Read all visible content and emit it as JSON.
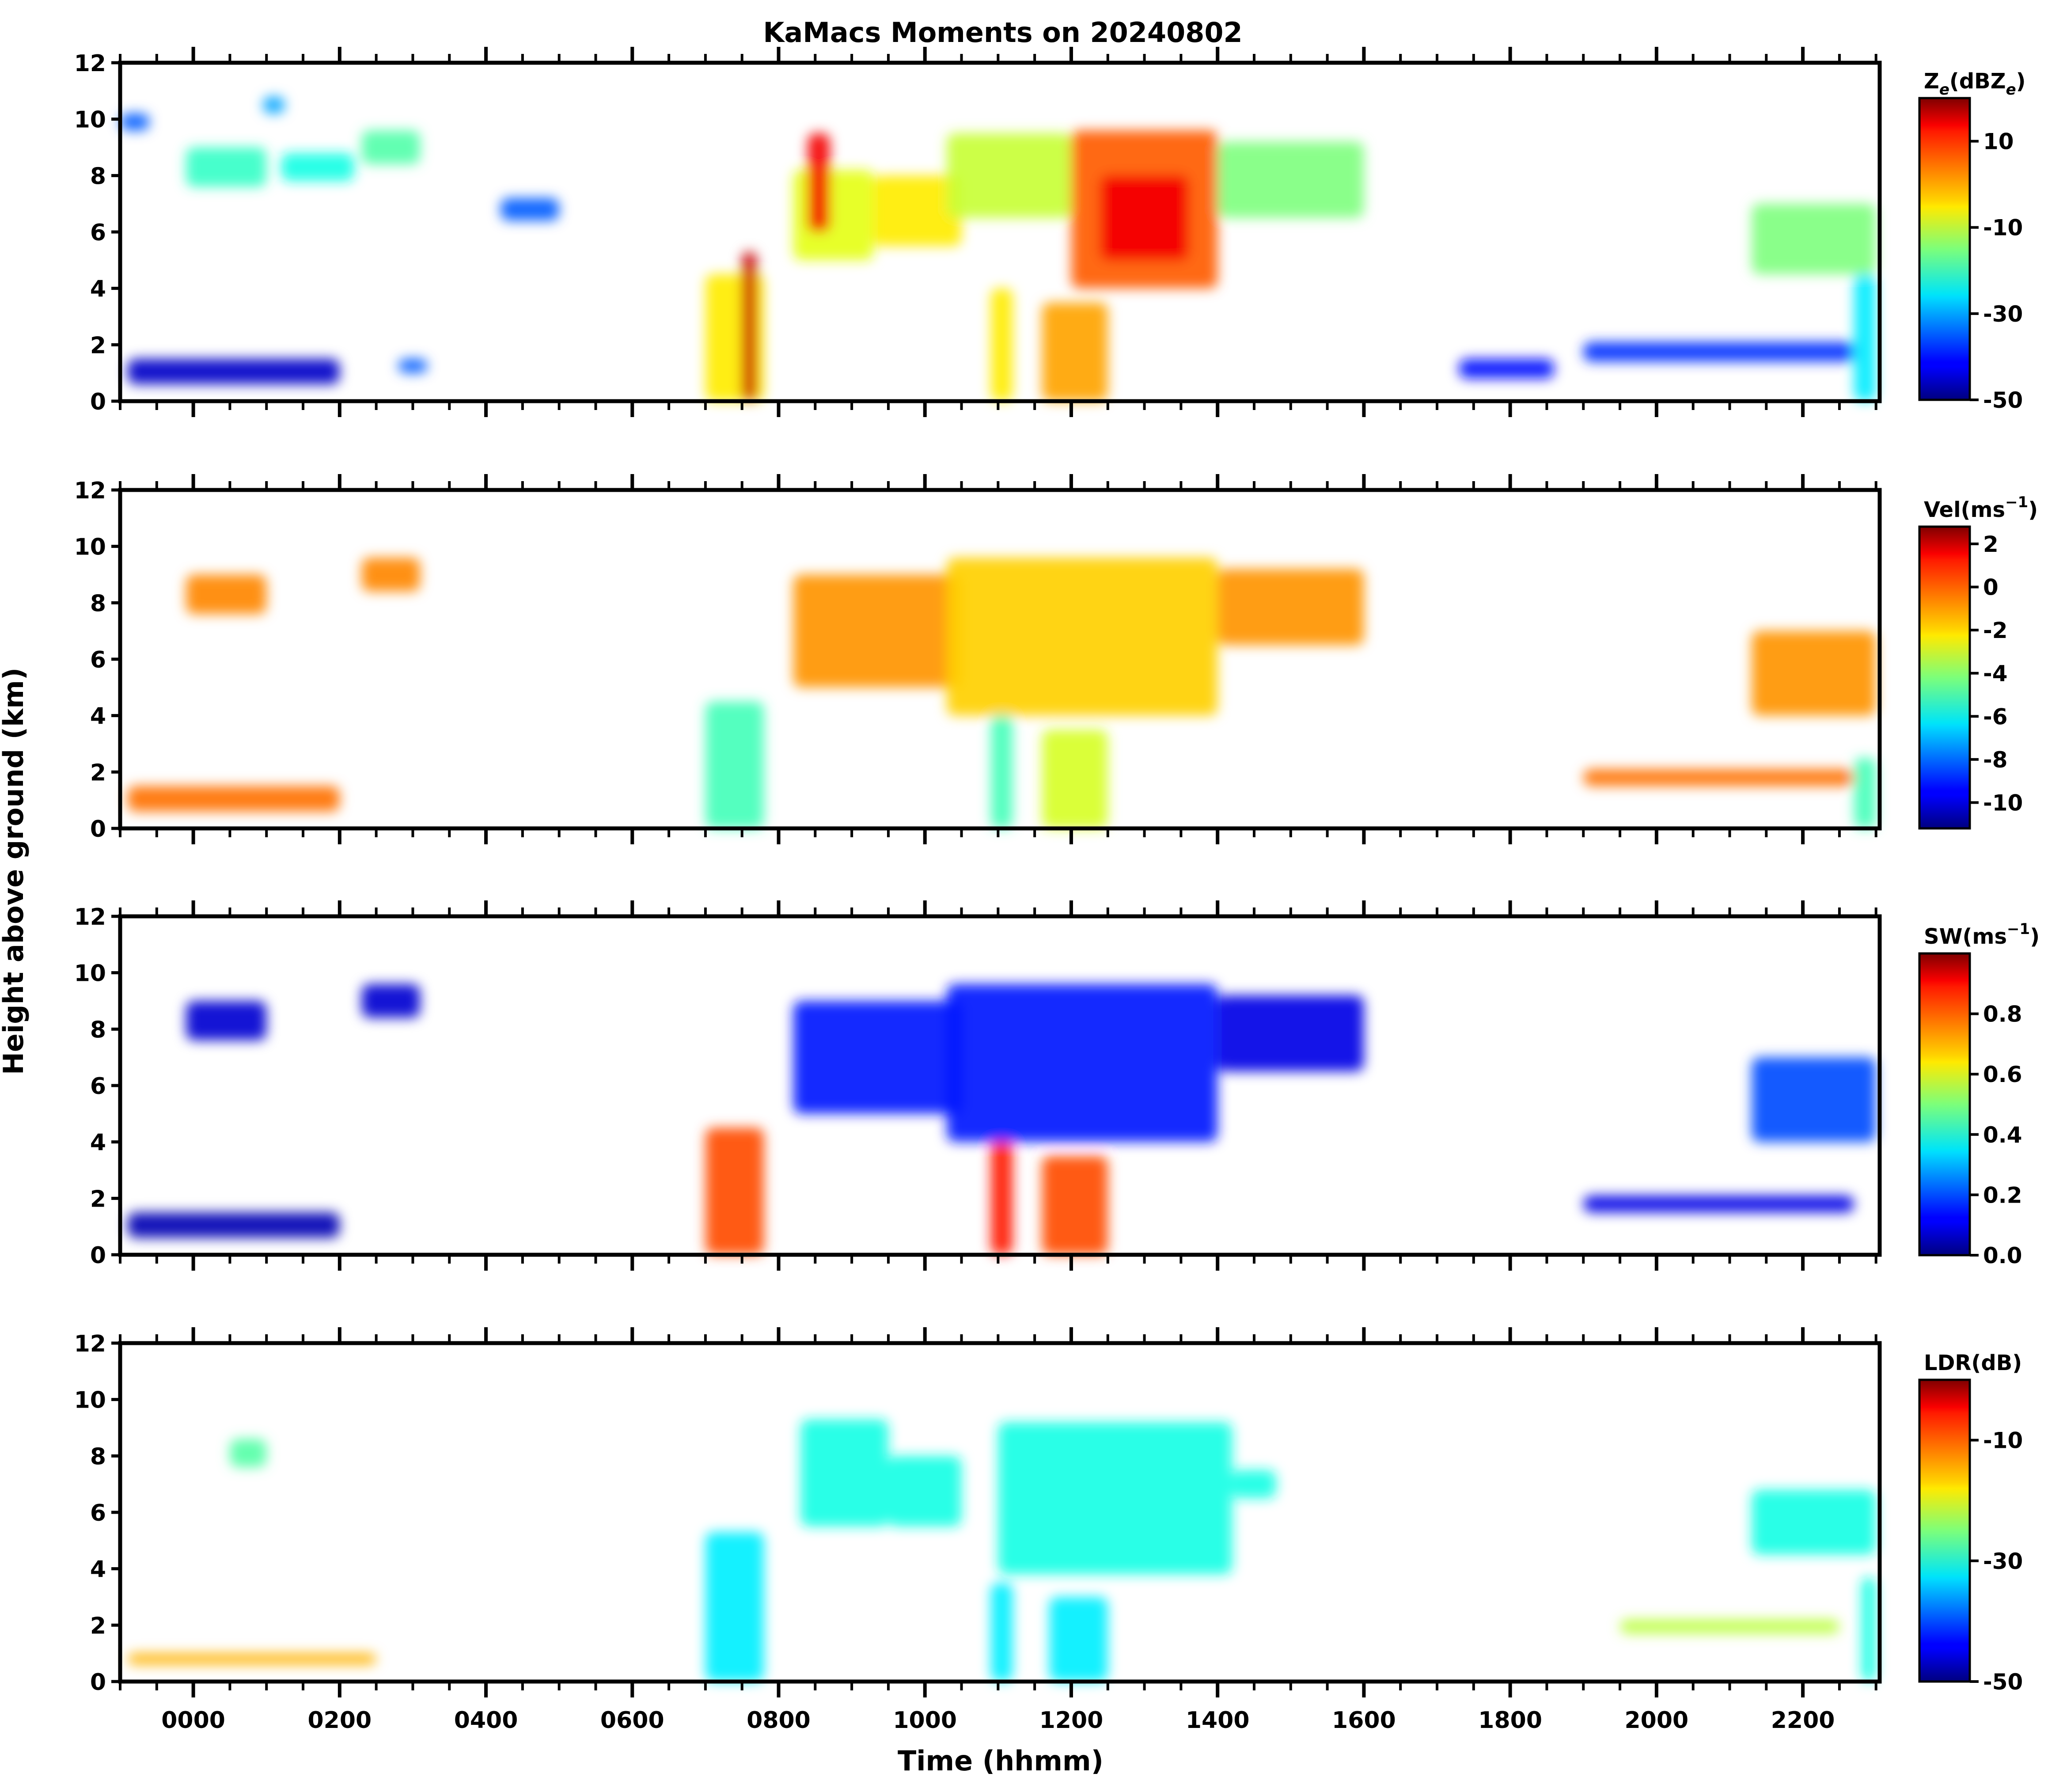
{
  "chart_data": {
    "type": "heatmap",
    "title": "KaMacs Moments on 20240802",
    "xlabel": "Time (hhmm)",
    "ylabel": "Height above ground (km)",
    "x_range_hours": [
      -1.0,
      23.05
    ],
    "x_ticks": [
      {
        "hour": 0,
        "label": "0000"
      },
      {
        "hour": 2,
        "label": "0200"
      },
      {
        "hour": 4,
        "label": "0400"
      },
      {
        "hour": 6,
        "label": "0600"
      },
      {
        "hour": 8,
        "label": "0800"
      },
      {
        "hour": 10,
        "label": "1000"
      },
      {
        "hour": 12,
        "label": "1200"
      },
      {
        "hour": 14,
        "label": "1400"
      },
      {
        "hour": 16,
        "label": "1600"
      },
      {
        "hour": 18,
        "label": "1800"
      },
      {
        "hour": 20,
        "label": "2000"
      },
      {
        "hour": 22,
        "label": "2200"
      }
    ],
    "ylim_km": [
      0,
      12
    ],
    "y_ticks": [
      "0",
      "2",
      "4",
      "6",
      "8",
      "10",
      "12"
    ],
    "panels": [
      {
        "name": "reflectivity",
        "colorbar_label_base": "Z",
        "colorbar_label_sub": "e",
        "colorbar_label_rest": "(dBZ",
        "colorbar_label_sub2": "e",
        "colorbar_label_end": ")",
        "vmin": -50,
        "vmax": 20,
        "colorbar_ticks": [
          {
            "v": 10,
            "label": "10"
          },
          {
            "v": -10,
            "label": "-10"
          },
          {
            "v": -30,
            "label": "-30"
          },
          {
            "v": -50,
            "label": "-50"
          }
        ],
        "echoes": [
          {
            "t0": -1.0,
            "t1": -0.6,
            "h0": 9.6,
            "h1": 10.2,
            "value": -35
          },
          {
            "t0": -0.1,
            "t1": 1.0,
            "h0": 7.6,
            "h1": 9.0,
            "value": -20
          },
          {
            "t0": 1.2,
            "t1": 2.2,
            "h0": 7.8,
            "h1": 8.8,
            "value": -22
          },
          {
            "t0": 2.3,
            "t1": 3.1,
            "h0": 8.4,
            "h1": 9.6,
            "value": -18
          },
          {
            "t0": 0.95,
            "t1": 1.25,
            "h0": 10.2,
            "h1": 10.8,
            "value": -30
          },
          {
            "t0": 4.2,
            "t1": 5.0,
            "h0": 6.4,
            "h1": 7.2,
            "value": -35
          },
          {
            "t0": 8.2,
            "t1": 9.3,
            "h0": 5.0,
            "h1": 8.2,
            "value": -8
          },
          {
            "t0": 8.4,
            "t1": 8.7,
            "h0": 6.0,
            "h1": 9.5,
            "value": 12
          },
          {
            "t0": 9.3,
            "t1": 10.5,
            "h0": 5.5,
            "h1": 8.0,
            "value": -5
          },
          {
            "t0": 10.3,
            "t1": 12.0,
            "h0": 6.5,
            "h1": 9.5,
            "value": -10
          },
          {
            "t0": 12.0,
            "t1": 14.0,
            "h0": 4.0,
            "h1": 9.6,
            "value": 5
          },
          {
            "t0": 12.4,
            "t1": 13.6,
            "h0": 5.0,
            "h1": 8.0,
            "value": 12
          },
          {
            "t0": 14.0,
            "t1": 16.0,
            "h0": 6.5,
            "h1": 9.2,
            "value": -15
          },
          {
            "t0": 21.3,
            "t1": 23.0,
            "h0": 4.5,
            "h1": 7.0,
            "value": -15
          },
          {
            "t0": 22.7,
            "t1": 23.0,
            "h0": 0.0,
            "h1": 4.5,
            "value": -25
          },
          {
            "t0": 7.0,
            "t1": 7.8,
            "h0": 0.0,
            "h1": 4.5,
            "value": -5
          },
          {
            "t0": 7.5,
            "t1": 7.7,
            "h0": 0.0,
            "h1": 5.3,
            "value": 15
          },
          {
            "t0": 10.9,
            "t1": 11.2,
            "h0": 0.0,
            "h1": 4.0,
            "value": -5
          },
          {
            "t0": 11.6,
            "t1": 12.5,
            "h0": 0.0,
            "h1": 3.5,
            "value": 0
          },
          {
            "t0": -0.9,
            "t1": 2.0,
            "h0": 0.6,
            "h1": 1.5,
            "value": -45
          },
          {
            "t0": 2.8,
            "t1": 3.2,
            "h0": 1.0,
            "h1": 1.5,
            "value": -35
          },
          {
            "t0": 17.3,
            "t1": 18.6,
            "h0": 0.8,
            "h1": 1.5,
            "value": -40
          },
          {
            "t0": 19.0,
            "t1": 22.7,
            "h0": 1.4,
            "h1": 2.1,
            "value": -38
          }
        ]
      },
      {
        "name": "velocity",
        "colorbar_label_base": "Vel(ms",
        "colorbar_label_sup": "−1",
        "colorbar_label_end": ")",
        "vmin": -11.2,
        "vmax": 2.8,
        "colorbar_ticks": [
          {
            "v": 2,
            "label": "2"
          },
          {
            "v": 0,
            "label": "0"
          },
          {
            "v": -2,
            "label": "-2"
          },
          {
            "v": -4,
            "label": "-4"
          },
          {
            "v": -6,
            "label": "-6"
          },
          {
            "v": -8,
            "label": "-8"
          },
          {
            "v": -10,
            "label": "-10"
          }
        ],
        "echoes": [
          {
            "t0": -0.1,
            "t1": 1.0,
            "h0": 7.6,
            "h1": 9.0,
            "value": -0.8
          },
          {
            "t0": 2.3,
            "t1": 3.1,
            "h0": 8.4,
            "h1": 9.6,
            "value": -0.8
          },
          {
            "t0": 8.2,
            "t1": 10.5,
            "h0": 5.0,
            "h1": 9.0,
            "value": -1.0
          },
          {
            "t0": 10.3,
            "t1": 14.0,
            "h0": 4.0,
            "h1": 9.6,
            "value": -1.8
          },
          {
            "t0": 14.0,
            "t1": 16.0,
            "h0": 6.5,
            "h1": 9.2,
            "value": -1.0
          },
          {
            "t0": 21.3,
            "t1": 23.0,
            "h0": 4.0,
            "h1": 7.0,
            "value": -1.0
          },
          {
            "t0": 7.0,
            "t1": 7.8,
            "h0": 0.0,
            "h1": 4.5,
            "value": -5
          },
          {
            "t0": 10.9,
            "t1": 11.2,
            "h0": 0.0,
            "h1": 4.0,
            "value": -5
          },
          {
            "t0": 11.6,
            "t1": 12.5,
            "h0": 0.0,
            "h1": 3.5,
            "value": -3
          },
          {
            "t0": -0.9,
            "t1": 2.0,
            "h0": 0.6,
            "h1": 1.5,
            "value": -0.5
          },
          {
            "t0": 19.0,
            "t1": 22.7,
            "h0": 1.5,
            "h1": 2.1,
            "value": -0.5
          },
          {
            "t0": 22.7,
            "t1": 23.0,
            "h0": 0.0,
            "h1": 2.5,
            "value": -5
          }
        ]
      },
      {
        "name": "spectrum_width",
        "colorbar_label_base": "SW(ms",
        "colorbar_label_sup": "−1",
        "colorbar_label_end": ")",
        "vmin": 0.0,
        "vmax": 1.0,
        "colorbar_ticks": [
          {
            "v": 0.8,
            "label": "0.8"
          },
          {
            "v": 0.6,
            "label": "0.6"
          },
          {
            "v": 0.4,
            "label": "0.4"
          },
          {
            "v": 0.2,
            "label": "0.2"
          },
          {
            "v": 0.0,
            "label": "0.0"
          }
        ],
        "echoes": [
          {
            "t0": -0.1,
            "t1": 1.0,
            "h0": 7.6,
            "h1": 9.0,
            "value": 0.08
          },
          {
            "t0": 2.3,
            "t1": 3.1,
            "h0": 8.4,
            "h1": 9.6,
            "value": 0.08
          },
          {
            "t0": 8.2,
            "t1": 10.5,
            "h0": 5.0,
            "h1": 9.0,
            "value": 0.15
          },
          {
            "t0": 10.3,
            "t1": 14.0,
            "h0": 4.0,
            "h1": 9.6,
            "value": 0.15
          },
          {
            "t0": 14.0,
            "t1": 16.0,
            "h0": 6.5,
            "h1": 9.2,
            "value": 0.1
          },
          {
            "t0": 21.3,
            "t1": 23.0,
            "h0": 4.0,
            "h1": 7.0,
            "value": 0.2
          },
          {
            "t0": 7.0,
            "t1": 7.8,
            "h0": 0.0,
            "h1": 4.5,
            "value": 0.8
          },
          {
            "t0": 10.9,
            "t1": 11.2,
            "h0": 0.0,
            "h1": 4.0,
            "value": 0.85
          },
          {
            "t0": 11.6,
            "t1": 12.5,
            "h0": 0.0,
            "h1": 3.5,
            "value": 0.8
          },
          {
            "t0": -0.9,
            "t1": 2.0,
            "h0": 0.6,
            "h1": 1.5,
            "value": 0.05
          },
          {
            "t0": 19.0,
            "t1": 22.7,
            "h0": 1.5,
            "h1": 2.1,
            "value": 0.1
          }
        ]
      },
      {
        "name": "ldr",
        "colorbar_label_base": "LDR(dB)",
        "vmin": -50,
        "vmax": 0,
        "colorbar_ticks": [
          {
            "v": -10,
            "label": "-10"
          },
          {
            "v": -30,
            "label": "-30"
          },
          {
            "v": -50,
            "label": "-50"
          }
        ],
        "echoes": [
          {
            "t0": 0.5,
            "t1": 1.0,
            "h0": 7.6,
            "h1": 8.6,
            "value": -27
          },
          {
            "t0": 8.3,
            "t1": 9.5,
            "h0": 5.5,
            "h1": 9.3,
            "value": -30
          },
          {
            "t0": 9.5,
            "t1": 10.5,
            "h0": 5.5,
            "h1": 8.0,
            "value": -30
          },
          {
            "t0": 11.0,
            "t1": 14.2,
            "h0": 3.8,
            "h1": 9.2,
            "value": -30
          },
          {
            "t0": 14.2,
            "t1": 14.8,
            "h0": 6.5,
            "h1": 7.5,
            "value": -30
          },
          {
            "t0": 21.3,
            "t1": 23.0,
            "h0": 4.5,
            "h1": 6.8,
            "value": -30
          },
          {
            "t0": 7.0,
            "t1": 7.8,
            "h0": 0.0,
            "h1": 5.3,
            "value": -32
          },
          {
            "t0": 10.9,
            "t1": 11.2,
            "h0": 0.0,
            "h1": 3.5,
            "value": -32
          },
          {
            "t0": 11.7,
            "t1": 12.5,
            "h0": 0.0,
            "h1": 3.0,
            "value": -32
          },
          {
            "t0": 22.8,
            "t1": 23.0,
            "h0": 0.0,
            "h1": 3.7,
            "value": -30
          },
          {
            "t0": 19.5,
            "t1": 22.5,
            "h0": 1.7,
            "h1": 2.2,
            "value": -22
          },
          {
            "t0": -0.9,
            "t1": 2.5,
            "h0": 0.6,
            "h1": 1.0,
            "value": -15
          }
        ]
      }
    ]
  }
}
